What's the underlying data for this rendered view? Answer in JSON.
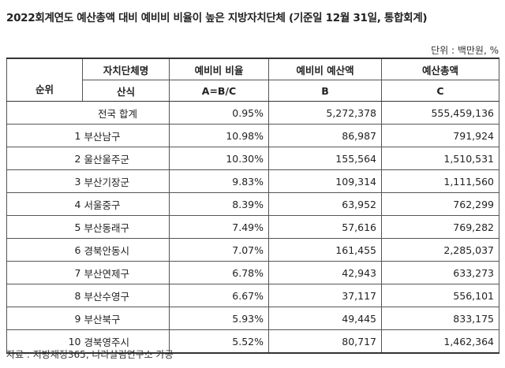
{
  "title": "2022회계연도 예산총액 대비 예비비 비율이 높은 지방자치단체 (기준일 12월 31일, 통합회계)",
  "unit": "단위 : 백만원, %",
  "headers": {
    "rank": "순위",
    "entity": "자치단체명",
    "ratio": "예비비 비율",
    "reserve": "예비비 예산액",
    "budget": "예산총액",
    "formula_label": "산식",
    "formula_ratio": "A=B/C",
    "formula_b": "B",
    "formula_c": "C"
  },
  "total": {
    "label": "전국 합계",
    "ratio": "0.95%",
    "reserve": "5,272,378",
    "budget": "555,459,136"
  },
  "rows": [
    {
      "rank": "1",
      "name": "부산남구",
      "ratio": "10.98%",
      "reserve": "86,987",
      "budget": "791,924"
    },
    {
      "rank": "2",
      "name": "울산울주군",
      "ratio": "10.30%",
      "reserve": "155,564",
      "budget": "1,510,531"
    },
    {
      "rank": "3",
      "name": "부산기장군",
      "ratio": "9.83%",
      "reserve": "109,314",
      "budget": "1,111,560"
    },
    {
      "rank": "4",
      "name": "서울중구",
      "ratio": "8.39%",
      "reserve": "63,952",
      "budget": "762,299"
    },
    {
      "rank": "5",
      "name": "부산동래구",
      "ratio": "7.49%",
      "reserve": "57,616",
      "budget": "769,282"
    },
    {
      "rank": "6",
      "name": "경북안동시",
      "ratio": "7.07%",
      "reserve": "161,455",
      "budget": "2,285,037"
    },
    {
      "rank": "7",
      "name": "부산연제구",
      "ratio": "6.78%",
      "reserve": "42,943",
      "budget": "633,273"
    },
    {
      "rank": "8",
      "name": "부산수영구",
      "ratio": "6.67%",
      "reserve": "37,117",
      "budget": "556,101"
    },
    {
      "rank": "9",
      "name": "부산북구",
      "ratio": "5.93%",
      "reserve": "49,445",
      "budget": "833,175"
    },
    {
      "rank": "10",
      "name": "경북영주시",
      "ratio": "5.52%",
      "reserve": "80,717",
      "budget": "1,462,364"
    }
  ],
  "source": "자료 : 지방재정365, 나라살림연구소 가공"
}
